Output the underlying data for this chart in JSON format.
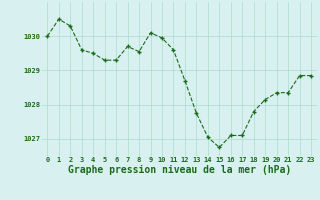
{
  "x": [
    0,
    1,
    2,
    3,
    4,
    5,
    6,
    7,
    8,
    9,
    10,
    11,
    12,
    13,
    14,
    15,
    16,
    17,
    18,
    19,
    20,
    21,
    22,
    23
  ],
  "y": [
    1030.0,
    1030.5,
    1030.3,
    1029.6,
    1029.5,
    1029.3,
    1029.3,
    1029.7,
    1029.55,
    1030.1,
    1029.95,
    1029.6,
    1028.7,
    1027.75,
    1027.05,
    1026.75,
    1027.1,
    1027.1,
    1027.8,
    1028.15,
    1028.35,
    1028.35,
    1028.85,
    1028.85
  ],
  "line_color": "#1a6b1a",
  "marker_color": "#1a6b1a",
  "bg_color": "#d9f0f0",
  "grid_color": "#aaddcc",
  "xlabel": "Graphe pression niveau de la mer (hPa)",
  "xlabel_color": "#1a6b1a",
  "tick_color": "#1a6b1a",
  "ylim": [
    1026.5,
    1031.0
  ],
  "yticks": [
    1027,
    1028,
    1029,
    1030
  ],
  "xlim": [
    -0.5,
    23.5
  ],
  "xticks": [
    0,
    1,
    2,
    3,
    4,
    5,
    6,
    7,
    8,
    9,
    10,
    11,
    12,
    13,
    14,
    15,
    16,
    17,
    18,
    19,
    20,
    21,
    22,
    23
  ],
  "tick_fontsize": 5.0,
  "xlabel_fontsize": 7.0
}
